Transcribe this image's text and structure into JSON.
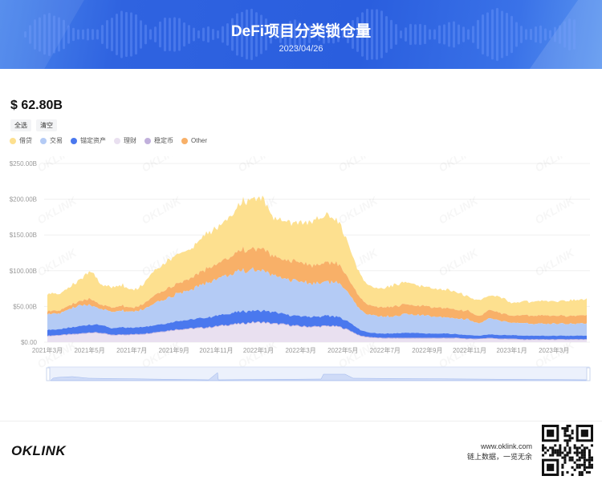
{
  "banner": {
    "title": "DeFi项目分类锁仓量",
    "date": "2023/04/26"
  },
  "summary": {
    "total": "$ 62.80B",
    "select_all": "全选",
    "clear": "清空"
  },
  "legend": [
    {
      "label": "借贷",
      "color": "#fde08f"
    },
    {
      "label": "交易",
      "color": "#b4cbf5"
    },
    {
      "label": "锚定资产",
      "color": "#4a78ee"
    },
    {
      "label": "理财",
      "color": "#e9e0f0"
    },
    {
      "label": "稳定币",
      "color": "#c1b0dc"
    },
    {
      "label": "Other",
      "color": "#f8b068"
    }
  ],
  "footer": {
    "logo": "OKLINK",
    "url": "www.oklink.com",
    "slogan": "链上数据，一览无余"
  },
  "watermark": "OKLINK",
  "chart_data": {
    "type": "area",
    "stacked": true,
    "title": "DeFi项目分类锁仓量",
    "xlabel": "",
    "ylabel": "",
    "ylim": [
      0,
      250
    ],
    "yticks": [
      "$0.00",
      "$50.00B",
      "$100.00B",
      "$150.00B",
      "$200.00B",
      "$250.00B"
    ],
    "xticks": [
      "2021年3月",
      "2021年5月",
      "2021年7月",
      "2021年9月",
      "2021年11月",
      "2022年1月",
      "2022年3月",
      "2022年5月",
      "2022年7月",
      "2022年9月",
      "2022年11月",
      "2023年1月",
      "2023年3月"
    ],
    "grid": true,
    "legend_position": "top-left",
    "x": [
      "2021-03",
      "2021-03b",
      "2021-04",
      "2021-04b",
      "2021-05",
      "2021-05b",
      "2021-06",
      "2021-06b",
      "2021-07",
      "2021-07b",
      "2021-08",
      "2021-08b",
      "2021-09",
      "2021-09b",
      "2021-10",
      "2021-10b",
      "2021-11",
      "2021-11b",
      "2021-12",
      "2021-12b",
      "2022-01",
      "2022-01b",
      "2022-02",
      "2022-02b",
      "2022-03",
      "2022-03b",
      "2022-04",
      "2022-04b",
      "2022-05",
      "2022-05b",
      "2022-06",
      "2022-06b",
      "2022-07",
      "2022-07b",
      "2022-08",
      "2022-08b",
      "2022-09",
      "2022-09b",
      "2022-10",
      "2022-10b",
      "2022-11",
      "2022-11b",
      "2022-12",
      "2022-12b",
      "2023-01",
      "2023-01b",
      "2023-02",
      "2023-02b",
      "2023-03",
      "2023-03b",
      "2023-04"
    ],
    "series": [
      {
        "name": "理财",
        "values": [
          8,
          9,
          10,
          11,
          13,
          12,
          9,
          10,
          10,
          11,
          13,
          15,
          17,
          18,
          19,
          20,
          22,
          24,
          25,
          27,
          27,
          25,
          24,
          22,
          21,
          21,
          22,
          21,
          16,
          8,
          6,
          5,
          5,
          5,
          5,
          5,
          5,
          5,
          5,
          4,
          4,
          5,
          4,
          4,
          3,
          3,
          3,
          3,
          3,
          3,
          3
        ]
      },
      {
        "name": "稳定币",
        "values": [
          1,
          1,
          1,
          1,
          1,
          1,
          1,
          1,
          1,
          1,
          1,
          1,
          1,
          1,
          1,
          1,
          1,
          1,
          1,
          1,
          1,
          1,
          1,
          1,
          1,
          1,
          1,
          1,
          1,
          1,
          1,
          1,
          1,
          1,
          1,
          1,
          1,
          1,
          1,
          1,
          1,
          1,
          1,
          1,
          1,
          1,
          1,
          1,
          1,
          1,
          1
        ]
      },
      {
        "name": "锚定资产",
        "values": [
          8,
          8,
          9,
          10,
          11,
          11,
          9,
          10,
          9,
          10,
          10,
          10,
          12,
          12,
          13,
          14,
          15,
          15,
          17,
          16,
          16,
          16,
          14,
          14,
          14,
          13,
          14,
          13,
          11,
          8,
          6,
          6,
          6,
          7,
          7,
          6,
          6,
          6,
          5,
          5,
          4,
          5,
          5,
          5,
          5,
          5,
          5,
          5,
          5,
          5,
          5
        ]
      },
      {
        "name": "交易",
        "values": [
          22,
          22,
          26,
          28,
          28,
          22,
          23,
          23,
          22,
          25,
          30,
          35,
          38,
          40,
          45,
          50,
          52,
          55,
          55,
          58,
          57,
          50,
          50,
          49,
          47,
          47,
          48,
          47,
          38,
          27,
          25,
          24,
          24,
          26,
          25,
          25,
          24,
          23,
          22,
          22,
          17,
          22,
          20,
          17,
          17,
          17,
          17,
          17,
          17,
          17,
          17
        ]
      },
      {
        "name": "Other",
        "values": [
          4,
          4,
          5,
          6,
          9,
          6,
          6,
          7,
          5,
          8,
          11,
          13,
          14,
          16,
          18,
          20,
          22,
          25,
          30,
          30,
          30,
          26,
          26,
          27,
          26,
          25,
          27,
          26,
          20,
          16,
          13,
          13,
          14,
          14,
          13,
          13,
          13,
          13,
          12,
          12,
          10,
          12,
          11,
          10,
          11,
          11,
          12,
          11,
          11,
          11,
          12
        ]
      },
      {
        "name": "借贷",
        "values": [
          25,
          23,
          25,
          30,
          40,
          28,
          29,
          29,
          24,
          28,
          35,
          38,
          42,
          40,
          45,
          50,
          50,
          58,
          66,
          70,
          70,
          53,
          56,
          54,
          58,
          63,
          66,
          60,
          46,
          32,
          27,
          26,
          30,
          30,
          29,
          27,
          26,
          26,
          24,
          20,
          23,
          20,
          22,
          18,
          19,
          20,
          20,
          20,
          21,
          22,
          22
        ]
      }
    ],
    "stack_order_bottom_to_top": [
      "理财",
      "稳定币",
      "锚定资产",
      "交易",
      "Other",
      "借贷"
    ]
  }
}
